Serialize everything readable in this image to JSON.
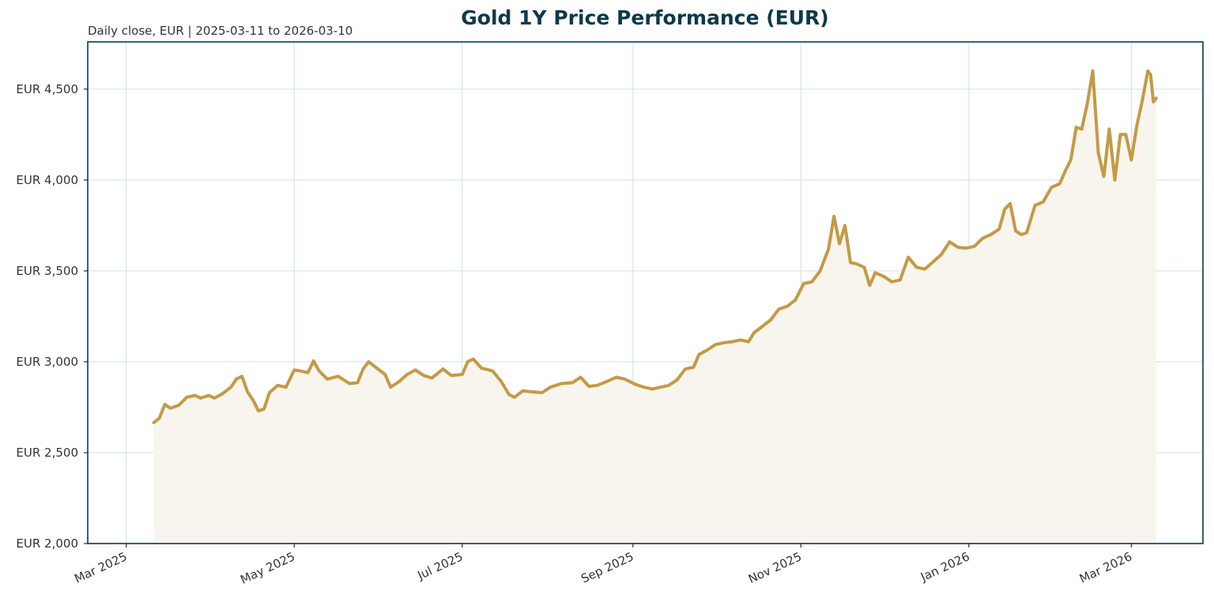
{
  "chart_data": {
    "type": "area",
    "title": "Gold 1Y Price Performance (EUR)",
    "subtitle": "Daily close, EUR | 2025-03-11 to 2026-03-10",
    "xlabel": "",
    "ylabel": "",
    "currency_prefix": "EUR",
    "x_range": [
      "2025-02-15",
      "2026-03-27"
    ],
    "ylim": [
      2000,
      4760
    ],
    "y_ticks": [
      2000,
      2500,
      3000,
      3500,
      4000,
      4500
    ],
    "y_tick_labels": [
      "EUR 2,000",
      "EUR 2,500",
      "EUR 3,000",
      "EUR 3,500",
      "EUR 4,000",
      "EUR 4,500"
    ],
    "x_ticks": [
      "2025-03-01",
      "2025-05-01",
      "2025-07-01",
      "2025-09-01",
      "2025-11-01",
      "2026-01-01",
      "2026-03-01"
    ],
    "x_tick_labels": [
      "Mar 2025",
      "May 2025",
      "Jul 2025",
      "Sep 2025",
      "Nov 2025",
      "Jan 2026",
      "Mar 2026"
    ],
    "grid": true,
    "line_color": "#c49a45",
    "fill_color": "#f8f5ef",
    "series": [
      {
        "points": [
          [
            "2025-03-11",
            2665
          ],
          [
            "2025-03-13",
            2690
          ],
          [
            "2025-03-15",
            2765
          ],
          [
            "2025-03-17",
            2745
          ],
          [
            "2025-03-20",
            2760
          ],
          [
            "2025-03-23",
            2805
          ],
          [
            "2025-03-26",
            2815
          ],
          [
            "2025-03-28",
            2800
          ],
          [
            "2025-03-31",
            2815
          ],
          [
            "2025-04-02",
            2800
          ],
          [
            "2025-04-05",
            2825
          ],
          [
            "2025-04-08",
            2860
          ],
          [
            "2025-04-10",
            2905
          ],
          [
            "2025-04-12",
            2920
          ],
          [
            "2025-04-14",
            2835
          ],
          [
            "2025-04-16",
            2790
          ],
          [
            "2025-04-18",
            2730
          ],
          [
            "2025-04-20",
            2740
          ],
          [
            "2025-04-22",
            2830
          ],
          [
            "2025-04-25",
            2870
          ],
          [
            "2025-04-28",
            2860
          ],
          [
            "2025-05-01",
            2955
          ],
          [
            "2025-05-03",
            2950
          ],
          [
            "2025-05-06",
            2940
          ],
          [
            "2025-05-08",
            3005
          ],
          [
            "2025-05-10",
            2950
          ],
          [
            "2025-05-13",
            2905
          ],
          [
            "2025-05-17",
            2920
          ],
          [
            "2025-05-21",
            2880
          ],
          [
            "2025-05-24",
            2885
          ],
          [
            "2025-05-26",
            2960
          ],
          [
            "2025-05-28",
            3000
          ],
          [
            "2025-05-31",
            2965
          ],
          [
            "2025-06-03",
            2930
          ],
          [
            "2025-06-05",
            2860
          ],
          [
            "2025-06-08",
            2890
          ],
          [
            "2025-06-11",
            2930
          ],
          [
            "2025-06-14",
            2955
          ],
          [
            "2025-06-17",
            2925
          ],
          [
            "2025-06-20",
            2910
          ],
          [
            "2025-06-24",
            2960
          ],
          [
            "2025-06-27",
            2925
          ],
          [
            "2025-07-01",
            2930
          ],
          [
            "2025-07-03",
            3000
          ],
          [
            "2025-07-05",
            3015
          ],
          [
            "2025-07-08",
            2965
          ],
          [
            "2025-07-12",
            2950
          ],
          [
            "2025-07-15",
            2895
          ],
          [
            "2025-07-18",
            2820
          ],
          [
            "2025-07-20",
            2805
          ],
          [
            "2025-07-23",
            2840
          ],
          [
            "2025-07-26",
            2835
          ],
          [
            "2025-07-30",
            2830
          ],
          [
            "2025-08-02",
            2860
          ],
          [
            "2025-08-06",
            2880
          ],
          [
            "2025-08-10",
            2885
          ],
          [
            "2025-08-13",
            2915
          ],
          [
            "2025-08-16",
            2865
          ],
          [
            "2025-08-19",
            2870
          ],
          [
            "2025-08-23",
            2895
          ],
          [
            "2025-08-26",
            2915
          ],
          [
            "2025-08-29",
            2905
          ],
          [
            "2025-09-02",
            2875
          ],
          [
            "2025-09-05",
            2860
          ],
          [
            "2025-09-08",
            2850
          ],
          [
            "2025-09-11",
            2860
          ],
          [
            "2025-09-14",
            2870
          ],
          [
            "2025-09-17",
            2900
          ],
          [
            "2025-09-20",
            2960
          ],
          [
            "2025-09-23",
            2970
          ],
          [
            "2025-09-25",
            3040
          ],
          [
            "2025-09-28",
            3065
          ],
          [
            "2025-10-01",
            3095
          ],
          [
            "2025-10-04",
            3105
          ],
          [
            "2025-10-07",
            3110
          ],
          [
            "2025-10-10",
            3120
          ],
          [
            "2025-10-13",
            3110
          ],
          [
            "2025-10-15",
            3160
          ],
          [
            "2025-10-18",
            3195
          ],
          [
            "2025-10-21",
            3230
          ],
          [
            "2025-10-24",
            3290
          ],
          [
            "2025-10-27",
            3305
          ],
          [
            "2025-10-30",
            3340
          ],
          [
            "2025-11-02",
            3430
          ],
          [
            "2025-11-05",
            3440
          ],
          [
            "2025-11-08",
            3500
          ],
          [
            "2025-11-11",
            3620
          ],
          [
            "2025-11-13",
            3800
          ],
          [
            "2025-11-15",
            3650
          ],
          [
            "2025-11-17",
            3750
          ],
          [
            "2025-11-19",
            3545
          ],
          [
            "2025-11-21",
            3540
          ],
          [
            "2025-11-24",
            3520
          ],
          [
            "2025-11-26",
            3420
          ],
          [
            "2025-11-28",
            3490
          ],
          [
            "2025-12-01",
            3470
          ],
          [
            "2025-12-04",
            3440
          ],
          [
            "2025-12-07",
            3450
          ],
          [
            "2025-12-10",
            3575
          ],
          [
            "2025-12-13",
            3520
          ],
          [
            "2025-12-16",
            3510
          ],
          [
            "2025-12-19",
            3550
          ],
          [
            "2025-12-22",
            3590
          ],
          [
            "2025-12-25",
            3660
          ],
          [
            "2025-12-28",
            3630
          ],
          [
            "2025-12-31",
            3625
          ],
          [
            "2026-01-03",
            3635
          ],
          [
            "2026-01-06",
            3680
          ],
          [
            "2026-01-09",
            3700
          ],
          [
            "2026-01-12",
            3730
          ],
          [
            "2026-01-14",
            3840
          ],
          [
            "2026-01-16",
            3870
          ],
          [
            "2026-01-18",
            3720
          ],
          [
            "2026-01-20",
            3700
          ],
          [
            "2026-01-22",
            3710
          ],
          [
            "2026-01-25",
            3860
          ],
          [
            "2026-01-28",
            3880
          ],
          [
            "2026-01-31",
            3960
          ],
          [
            "2026-02-03",
            3980
          ],
          [
            "2026-02-05",
            4050
          ],
          [
            "2026-02-07",
            4110
          ],
          [
            "2026-02-09",
            4290
          ],
          [
            "2026-02-11",
            4280
          ],
          [
            "2026-02-13",
            4420
          ],
          [
            "2026-02-15",
            4600
          ],
          [
            "2026-02-17",
            4150
          ],
          [
            "2026-02-19",
            4020
          ],
          [
            "2026-02-21",
            4280
          ],
          [
            "2026-02-23",
            4000
          ],
          [
            "2026-02-25",
            4250
          ],
          [
            "2026-02-27",
            4250
          ],
          [
            "2026-03-01",
            4110
          ],
          [
            "2026-03-03",
            4300
          ],
          [
            "2026-03-05",
            4440
          ],
          [
            "2026-03-07",
            4600
          ],
          [
            "2026-03-08",
            4580
          ],
          [
            "2026-03-09",
            4430
          ],
          [
            "2026-03-10",
            4450
          ]
        ]
      }
    ]
  }
}
